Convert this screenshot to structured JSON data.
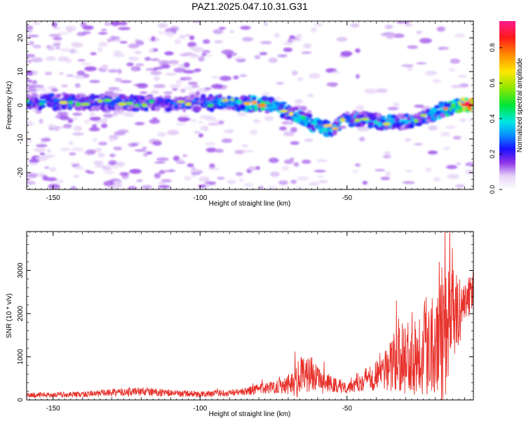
{
  "page_title": "PAZ1.2025.047.10.31.G31",
  "chart_data": [
    {
      "type": "heatmap",
      "ylabel": "Frequency (Hz)",
      "xlabel": "Height of straight line (km)",
      "xlim": [
        -159,
        -7
      ],
      "ylim": [
        -25,
        25
      ],
      "xticks": [
        -150,
        -100,
        -50
      ],
      "yticks": [
        20,
        10,
        0,
        -10,
        -20
      ],
      "colorbar": {
        "label": "Normalized spectral amplitude",
        "range": [
          0,
          0.95
        ],
        "ticks": [
          0.0,
          0.2,
          0.4,
          0.6,
          0.8
        ]
      },
      "ridge": {
        "x": [
          -159,
          -150,
          -140,
          -130,
          -120,
          -110,
          -100,
          -90,
          -80,
          -75,
          -70,
          -65,
          -60,
          -55,
          -50,
          -45,
          -40,
          -35,
          -30,
          -25,
          -20,
          -15,
          -10,
          -7
        ],
        "freq": [
          1,
          1,
          1,
          1,
          0.5,
          0.5,
          0.5,
          1,
          0.5,
          0,
          -2,
          -4,
          -6,
          -7,
          -4,
          -4,
          -5,
          -5,
          -5,
          -4,
          -2,
          -0.5,
          0,
          0
        ],
        "amplitude": [
          0.3,
          0.35,
          0.35,
          0.35,
          0.35,
          0.3,
          0.35,
          0.4,
          0.55,
          0.45,
          0.4,
          0.55,
          0.45,
          0.45,
          0.35,
          0.4,
          0.4,
          0.45,
          0.4,
          0.35,
          0.45,
          0.55,
          0.75,
          0.9
        ]
      }
    },
    {
      "type": "line",
      "ylabel": "SNR (10 * v/v)",
      "xlabel": "Height of straight line (km)",
      "xlim": [
        -159,
        -7
      ],
      "ylim": [
        0,
        3900
      ],
      "xticks": [
        -150,
        -100,
        -50
      ],
      "yticks": [
        0,
        1000,
        2000,
        3000
      ],
      "series": [
        {
          "color": "#e8302a",
          "envelope_x": [
            -159,
            -150,
            -140,
            -130,
            -125,
            -120,
            -110,
            -100,
            -90,
            -85,
            -80,
            -75,
            -70,
            -66,
            -62,
            -60,
            -55,
            -50,
            -45,
            -40,
            -35,
            -30,
            -25,
            -20,
            -17,
            -15,
            -12,
            -10,
            -8,
            -7
          ],
          "envelope_mean": [
            110,
            120,
            130,
            170,
            180,
            200,
            160,
            130,
            170,
            190,
            250,
            300,
            380,
            500,
            650,
            450,
            350,
            300,
            450,
            600,
            800,
            1000,
            1200,
            1500,
            1700,
            2000,
            2000,
            2300,
            2400,
            2600
          ],
          "envelope_amp": [
            60,
            60,
            70,
            90,
            100,
            110,
            80,
            70,
            80,
            90,
            120,
            150,
            250,
            500,
            400,
            300,
            200,
            150,
            250,
            400,
            600,
            900,
            1100,
            1400,
            1900,
            1200,
            800,
            500,
            500,
            600
          ]
        }
      ]
    }
  ]
}
